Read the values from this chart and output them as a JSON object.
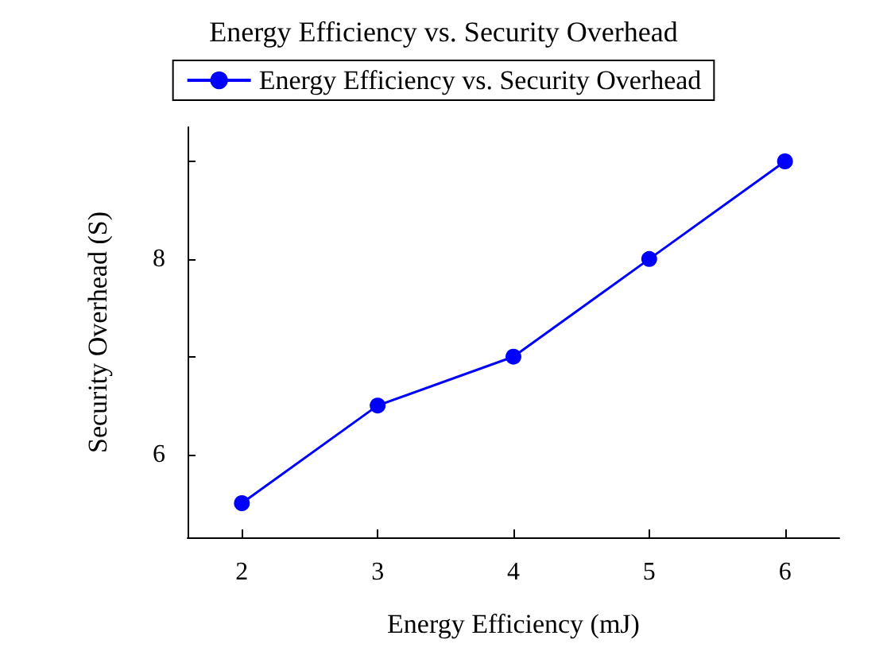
{
  "chart_data": {
    "type": "line",
    "title": "Energy Efficiency vs. Security Overhead",
    "xlabel": "Energy Efficiency (mJ)",
    "ylabel": "Security Overhead (S)",
    "x": [
      2,
      3,
      4,
      5,
      6
    ],
    "series": [
      {
        "name": "Energy Efficiency vs. Security Overhead",
        "color": "#0000ff",
        "values": [
          5.5,
          6.5,
          7,
          8,
          9
        ]
      }
    ],
    "xlim": [
      1.6,
      6.4
    ],
    "xticks": [
      2,
      3,
      4,
      5,
      6
    ],
    "ylim": [
      5.15,
      9.35
    ],
    "yticks": [
      6,
      {
        "value": 7,
        "label": null
      },
      8,
      {
        "value": 9,
        "label": null
      }
    ],
    "grid": false,
    "legend": "top",
    "marker": "circle",
    "line_style": "solid"
  }
}
